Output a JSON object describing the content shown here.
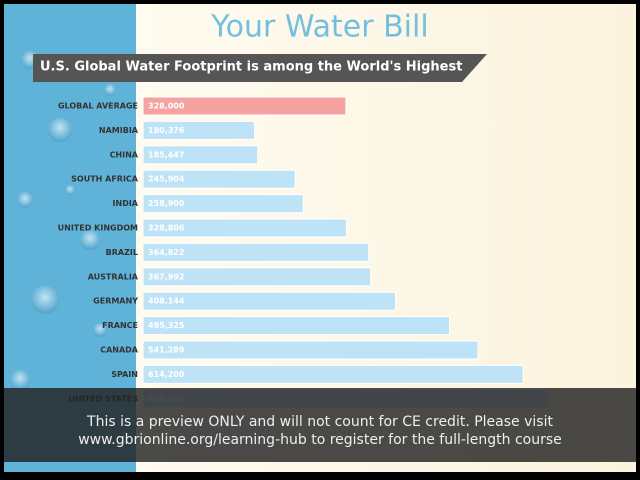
{
  "chart_data": {
    "type": "bar",
    "title": "Your Water Bill",
    "subtitle": "U.S. Global Water Footprint is among the World's Highest",
    "categories": [
      "GLOBAL AVERAGE",
      "NAMIBIA",
      "CHINA",
      "SOUTH AFRICA",
      "INDIA",
      "UNITED KINGDOM",
      "BRAZIL",
      "AUSTRALIA",
      "GERMANY",
      "FRANCE",
      "CANADA",
      "SPAIN",
      "UNITED STATES"
    ],
    "values": [
      328000,
      180376,
      185447,
      245904,
      258900,
      328806,
      364822,
      367992,
      408144,
      495325,
      541289,
      614200,
      655300
    ],
    "value_labels": [
      "328,000",
      "180,376",
      "185,447",
      "245,904",
      "258,900",
      "328,806",
      "364,822",
      "367,992",
      "408,144",
      "495,325",
      "541,289",
      "614,200",
      "655,300"
    ],
    "colors": [
      "#f4a3a0",
      "#bfe3f6",
      "#bfe3f6",
      "#bfe3f6",
      "#bfe3f6",
      "#bfe3f6",
      "#bfe3f6",
      "#bfe3f6",
      "#bfe3f6",
      "#bfe3f6",
      "#bfe3f6",
      "#bfe3f6",
      "#bfe3f6"
    ],
    "xlim": [
      0,
      800000
    ]
  },
  "overlay": {
    "text": [
      "This is a preview ONLY and will not count for CE credit. Please visit",
      "www.gbrionline.org/learning-hub to register for the full-length course"
    ]
  }
}
